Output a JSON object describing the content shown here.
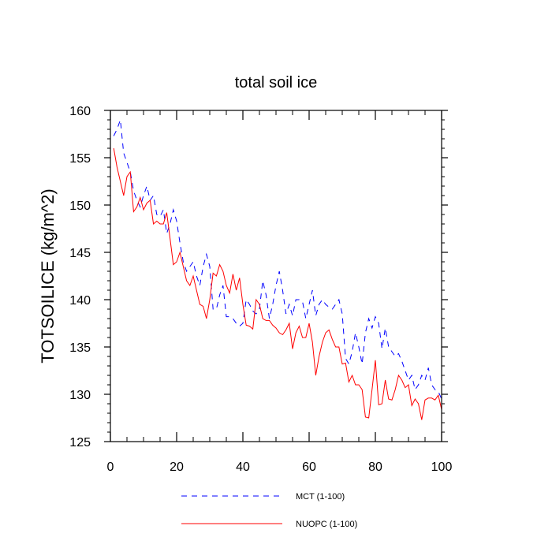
{
  "chart_data": {
    "type": "line",
    "title": "total soil ice",
    "xlabel": "",
    "ylabel": "TOTSOILICE  (kg/m^2)",
    "xlim": [
      0,
      100
    ],
    "ylim": [
      125,
      160
    ],
    "xticks": [
      0,
      20,
      40,
      60,
      80,
      100
    ],
    "yticks": [
      125,
      130,
      135,
      140,
      145,
      150,
      155,
      160
    ],
    "grid": false,
    "legend_position": "bottom",
    "series": [
      {
        "name": "MCT (1-100)",
        "color": "#0000ff",
        "dash": "dashed",
        "x": [
          1,
          2,
          3,
          4,
          5,
          6,
          7,
          8,
          9,
          10,
          11,
          12,
          13,
          14,
          15,
          16,
          17,
          18,
          19,
          20,
          21,
          22,
          23,
          24,
          25,
          26,
          27,
          28,
          29,
          30,
          31,
          32,
          33,
          34,
          35,
          36,
          37,
          38,
          39,
          40,
          41,
          42,
          43,
          44,
          45,
          46,
          47,
          48,
          49,
          50,
          51,
          52,
          53,
          54,
          55,
          56,
          57,
          58,
          59,
          60,
          61,
          62,
          63,
          64,
          65,
          66,
          67,
          68,
          69,
          70,
          71,
          72,
          73,
          74,
          75,
          76,
          77,
          78,
          79,
          80,
          81,
          82,
          83,
          84,
          85,
          86,
          87,
          88,
          89,
          90,
          91,
          92,
          93,
          94,
          95,
          96,
          97,
          98,
          99,
          100
        ],
        "values": [
          157.3,
          158,
          159,
          155.5,
          154.5,
          153.5,
          151.5,
          150.5,
          149.8,
          151,
          152,
          150.5,
          151,
          149,
          148.8,
          149.5,
          147,
          148,
          149.5,
          148.3,
          146,
          144,
          143,
          143.5,
          144,
          142.5,
          141.5,
          143.5,
          144.8,
          143.5,
          139,
          139,
          140.5,
          141.5,
          138.2,
          138.2,
          138,
          137.5,
          137.2,
          137.5,
          140,
          139.5,
          138.8,
          138.5,
          139,
          142,
          140.5,
          138,
          139.5,
          141.5,
          143,
          141,
          138.5,
          139.5,
          138.3,
          140,
          140,
          139.8,
          138,
          139.5,
          141,
          138.3,
          139.5,
          140,
          139.5,
          139.2,
          139,
          139.5,
          140,
          138.5,
          133.8,
          133.2,
          134.5,
          136.5,
          135,
          133.2,
          136.5,
          138,
          137,
          138.2,
          137.5,
          134.8,
          137,
          135,
          134.5,
          134,
          134.3,
          133.5,
          132.5,
          131.5,
          132,
          130.5,
          131,
          132,
          131.5,
          132.8,
          131,
          130.5,
          130.3,
          129.5
        ]
      },
      {
        "name": "NUOPC (1-100)",
        "color": "#ff0000",
        "dash": "solid",
        "x": [
          1,
          2,
          3,
          4,
          5,
          6,
          7,
          8,
          9,
          10,
          11,
          12,
          13,
          14,
          15,
          16,
          17,
          18,
          19,
          20,
          21,
          22,
          23,
          24,
          25,
          26,
          27,
          28,
          29,
          30,
          31,
          32,
          33,
          34,
          35,
          36,
          37,
          38,
          39,
          40,
          41,
          42,
          43,
          44,
          45,
          46,
          47,
          48,
          49,
          50,
          51,
          52,
          53,
          54,
          55,
          56,
          57,
          58,
          59,
          60,
          61,
          62,
          63,
          64,
          65,
          66,
          67,
          68,
          69,
          70,
          71,
          72,
          73,
          74,
          75,
          76,
          77,
          78,
          79,
          80,
          81,
          82,
          83,
          84,
          85,
          86,
          87,
          88,
          89,
          90,
          91,
          92,
          93,
          94,
          95,
          96,
          97,
          98,
          99,
          100
        ],
        "values": [
          156,
          154,
          152.5,
          151,
          153,
          153.5,
          149.3,
          149.8,
          150.8,
          149.5,
          150.2,
          150.5,
          148,
          148.3,
          148,
          148,
          149.2,
          146.5,
          143.7,
          144,
          145,
          143.5,
          142,
          141.5,
          142.5,
          141,
          139.5,
          139.3,
          138,
          140,
          142.8,
          142.5,
          143.7,
          143,
          141.5,
          140.7,
          142.7,
          141,
          142.3,
          139.5,
          137.3,
          137.2,
          136.9,
          140,
          139.5,
          138,
          137.8,
          137.8,
          137.3,
          137,
          136.5,
          136.3,
          136.8,
          137.5,
          134.8,
          136.5,
          137.2,
          136,
          136,
          137.5,
          135.5,
          132,
          134,
          135.5,
          136.5,
          136.8,
          135.8,
          135,
          135,
          133.2,
          133.3,
          131.3,
          132,
          131,
          131,
          130.5,
          127.6,
          127.5,
          130.5,
          133.6,
          128.9,
          129,
          131.5,
          129.5,
          129.4,
          130.5,
          132,
          131.5,
          130.7,
          131,
          128.8,
          129.5,
          129,
          127.3,
          129.4,
          129.6,
          129.6,
          129.4,
          129.9,
          128.4
        ]
      }
    ]
  }
}
